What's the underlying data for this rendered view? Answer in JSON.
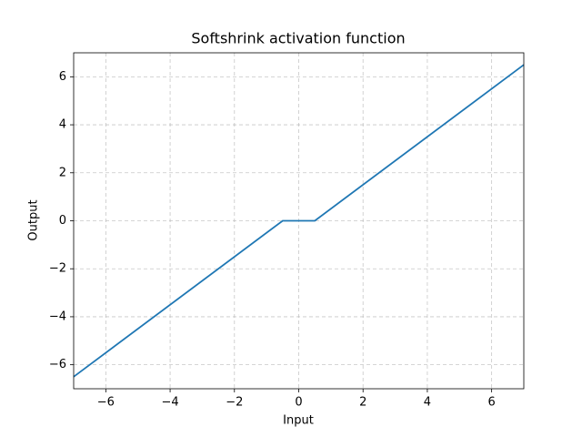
{
  "chart_data": {
    "type": "line",
    "title": "Softshrink activation function",
    "xlabel": "Input",
    "ylabel": "Output",
    "x": [
      -7,
      -0.5,
      0.5,
      7
    ],
    "series": [
      {
        "name": "Softshrink",
        "color": "#1f77b4",
        "values": [
          -6.5,
          0,
          0,
          6.5
        ]
      }
    ],
    "xlim": [
      -7,
      7
    ],
    "ylim": [
      -7,
      7
    ],
    "xticks": [
      {
        "value": -6,
        "label": "−6"
      },
      {
        "value": -4,
        "label": "−4"
      },
      {
        "value": -2,
        "label": "−2"
      },
      0,
      2,
      4,
      6
    ],
    "yticks": [
      {
        "value": -6,
        "label": "−6"
      },
      {
        "value": -4,
        "label": "−4"
      },
      {
        "value": -2,
        "label": "−2"
      },
      0,
      2,
      4,
      6
    ],
    "grid": true
  }
}
